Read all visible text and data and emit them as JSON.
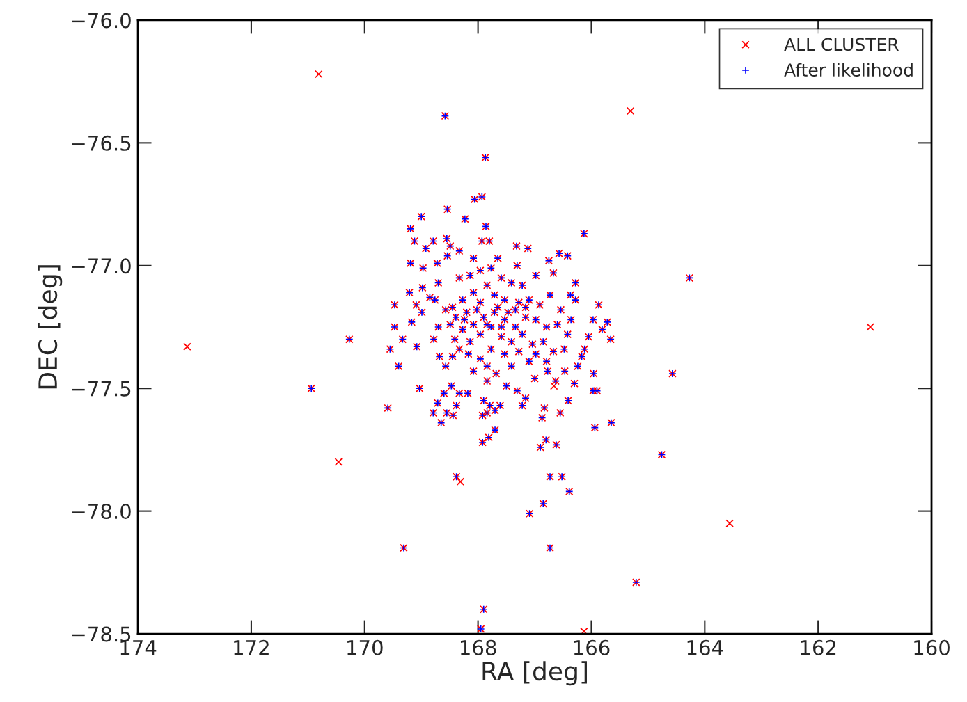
{
  "chart_data": {
    "type": "scatter",
    "xlabel": "RA [deg]",
    "ylabel": "DEC [deg]",
    "xlim": [
      174,
      160
    ],
    "xticks": [
      174,
      172,
      170,
      168,
      166,
      164,
      162,
      160
    ],
    "ylim": [
      -78.5,
      -76.0
    ],
    "yticks": [
      {
        "value": -78.5,
        "label": "−78.5"
      },
      {
        "value": -78.0,
        "label": "−78.0"
      },
      {
        "value": -77.5,
        "label": "−77.5"
      },
      {
        "value": -77.0,
        "label": "−77.0"
      },
      {
        "value": -76.5,
        "label": "−76.5"
      },
      {
        "value": -76.0,
        "label": "−76.0"
      }
    ],
    "grid": false,
    "legend": "top right",
    "series": [
      {
        "name": "ALL CLUSTER",
        "color": "#ff0000",
        "marker": "cross",
        "x": [
          168.58,
          167.87,
          170.27,
          170.94,
          169.59,
          169.31,
          167.9,
          167.95,
          166.13,
          164.27,
          164.57,
          164.76,
          165.21,
          166.73,
          167.09,
          166.85,
          166.39,
          166.73,
          166.52,
          166.8,
          166.9,
          166.62,
          167.92,
          167.81,
          167.7,
          168.38,
          168.06,
          167.93,
          168.54,
          168.23,
          167.86,
          169.0,
          169.19,
          169.12,
          168.79,
          168.55,
          168.92,
          168.49,
          167.93,
          167.8,
          167.32,
          167.12,
          166.57,
          166.42,
          169.19,
          168.97,
          168.72,
          168.54,
          168.33,
          168.08,
          167.65,
          167.31,
          166.75,
          168.98,
          169.21,
          168.85,
          168.7,
          166.98,
          166.67,
          166.28,
          166.37,
          166.28,
          165.87,
          165.97,
          165.72,
          165.81,
          165.66,
          166.05,
          169.47,
          169.47,
          169.17,
          169.09,
          168.99,
          169.33,
          169.55,
          169.4,
          169.08,
          168.78,
          168.68,
          169.03,
          168.79,
          168.47,
          168.6,
          168.33,
          168.18,
          167.9,
          167.61,
          167.22,
          167.16,
          166.83,
          166.55,
          166.41,
          165.96,
          166.3,
          166.63,
          166.77,
          166.24,
          166.12,
          165.9,
          168.08,
          167.84,
          167.5,
          167.31,
          167.68,
          168.57,
          168.45,
          168.17,
          168.41,
          168.49,
          168.24,
          168.65,
          168.71,
          168.55,
          168.44,
          168.38,
          167.79,
          167.7,
          167.92,
          167.84,
          165.94,
          165.65,
          165.97,
          166.87,
          167.0,
          166.47,
          166.17,
          168.33,
          168.14,
          167.96,
          167.77,
          167.59,
          167.41,
          167.22,
          167.84,
          168.08,
          168.27,
          167.96,
          167.71,
          167.53,
          167.28,
          167.1,
          166.91,
          166.73,
          166.54,
          166.6,
          166.79,
          166.98,
          167.16,
          167.34,
          167.53,
          167.71,
          167.9,
          168.08,
          168.27,
          167.96,
          167.77,
          167.59,
          167.41,
          167.22,
          167.04,
          166.85,
          166.67,
          166.48,
          167.28,
          167.53,
          167.77,
          167.96,
          167.1,
          166.98,
          167.65,
          167.47,
          167.84,
          168.02,
          167.16,
          167.34,
          167.59,
          168.45,
          168.39,
          168.2,
          168.57,
          168.7,
          168.76,
          166.42,
          166.36,
          168.33,
          168.14,
          167.84,
          167.41,
          166.79,
          170.81,
          165.31,
          173.13,
          170.46,
          161.08,
          163.56,
          168.31,
          166.66,
          166.13
        ],
        "values": [
          -76.39,
          -76.56,
          -77.3,
          -77.5,
          -77.58,
          -78.15,
          -78.4,
          -78.48,
          -76.87,
          -77.05,
          -77.44,
          -77.77,
          -78.29,
          -78.15,
          -78.01,
          -77.97,
          -77.92,
          -77.86,
          -77.86,
          -77.71,
          -77.74,
          -77.73,
          -77.72,
          -77.7,
          -77.67,
          -77.86,
          -76.73,
          -76.72,
          -76.77,
          -76.81,
          -76.84,
          -76.8,
          -76.85,
          -76.9,
          -76.9,
          -76.89,
          -76.93,
          -76.92,
          -76.9,
          -76.9,
          -76.92,
          -76.93,
          -76.95,
          -76.96,
          -76.99,
          -77.01,
          -76.99,
          -76.96,
          -76.94,
          -76.97,
          -76.97,
          -77.0,
          -76.98,
          -77.09,
          -77.11,
          -77.13,
          -77.07,
          -77.04,
          -77.03,
          -77.07,
          -77.12,
          -77.14,
          -77.16,
          -77.22,
          -77.23,
          -77.26,
          -77.3,
          -77.29,
          -77.16,
          -77.25,
          -77.23,
          -77.16,
          -77.19,
          -77.3,
          -77.34,
          -77.41,
          -77.33,
          -77.3,
          -77.37,
          -77.5,
          -77.6,
          -77.49,
          -77.52,
          -77.52,
          -77.52,
          -77.55,
          -77.57,
          -77.57,
          -77.54,
          -77.58,
          -77.6,
          -77.55,
          -77.44,
          -77.48,
          -77.47,
          -77.43,
          -77.41,
          -77.34,
          -77.51,
          -77.43,
          -77.47,
          -77.49,
          -77.51,
          -77.44,
          -77.41,
          -77.37,
          -77.36,
          -77.3,
          -77.24,
          -77.22,
          -77.64,
          -77.56,
          -77.6,
          -77.61,
          -77.57,
          -77.57,
          -77.59,
          -77.61,
          -77.6,
          -77.66,
          -77.64,
          -77.51,
          -77.62,
          -77.46,
          -77.43,
          -77.37,
          -77.05,
          -77.04,
          -77.02,
          -77.01,
          -77.05,
          -77.07,
          -77.08,
          -77.08,
          -77.11,
          -77.14,
          -77.15,
          -77.12,
          -77.14,
          -77.15,
          -77.14,
          -77.16,
          -77.12,
          -77.18,
          -77.24,
          -77.25,
          -77.22,
          -77.21,
          -77.25,
          -77.22,
          -77.19,
          -77.21,
          -77.24,
          -77.26,
          -77.28,
          -77.25,
          -77.29,
          -77.31,
          -77.28,
          -77.32,
          -77.31,
          -77.35,
          -77.34,
          -77.35,
          -77.36,
          -77.34,
          -77.38,
          -77.39,
          -77.36,
          -77.17,
          -77.19,
          -77.24,
          -77.18,
          -77.17,
          -77.18,
          -77.25,
          -77.17,
          -77.21,
          -77.19,
          -77.18,
          -77.25,
          -77.14,
          -77.28,
          -77.22,
          -77.34,
          -77.31,
          -77.41,
          -77.41,
          -77.39,
          -76.22,
          -76.37,
          -77.33,
          -77.8,
          -77.25,
          -78.05,
          -77.88,
          -77.49,
          -78.49
        ]
      },
      {
        "name": "After likelihood",
        "color": "#0000ff",
        "marker": "plus",
        "x": [
          168.58,
          167.87,
          170.27,
          170.94,
          169.59,
          169.31,
          167.9,
          167.95,
          166.13,
          164.27,
          164.57,
          164.76,
          165.21,
          166.73,
          167.09,
          166.85,
          166.39,
          166.73,
          166.52,
          166.8,
          166.9,
          166.62,
          167.92,
          167.81,
          167.7,
          168.38,
          168.06,
          167.93,
          168.54,
          168.23,
          167.86,
          169.0,
          169.19,
          169.12,
          168.79,
          168.55,
          168.92,
          168.49,
          167.93,
          167.8,
          167.32,
          167.12,
          166.57,
          166.42,
          169.19,
          168.97,
          168.72,
          168.54,
          168.33,
          168.08,
          167.65,
          167.31,
          166.75,
          168.98,
          169.21,
          168.85,
          168.7,
          166.98,
          166.67,
          166.28,
          166.37,
          166.28,
          165.87,
          165.97,
          165.72,
          165.81,
          165.66,
          166.05,
          169.47,
          169.47,
          169.17,
          169.09,
          168.99,
          169.33,
          169.55,
          169.4,
          169.08,
          168.78,
          168.68,
          169.03,
          168.79,
          168.47,
          168.6,
          168.33,
          168.18,
          167.9,
          167.61,
          167.22,
          167.16,
          166.83,
          166.55,
          166.41,
          165.96,
          166.3,
          166.63,
          166.77,
          166.24,
          166.12,
          165.9,
          168.08,
          167.84,
          167.5,
          167.31,
          167.68,
          168.57,
          168.45,
          168.17,
          168.41,
          168.49,
          168.24,
          168.65,
          168.71,
          168.55,
          168.44,
          168.38,
          167.79,
          167.7,
          167.92,
          167.84,
          165.94,
          165.65,
          165.97,
          166.87,
          167.0,
          166.47,
          166.17,
          168.33,
          168.14,
          167.96,
          167.77,
          167.59,
          167.41,
          167.22,
          167.84,
          168.08,
          168.27,
          167.96,
          167.71,
          167.53,
          167.28,
          167.1,
          166.91,
          166.73,
          166.54,
          166.6,
          166.79,
          166.98,
          167.16,
          167.34,
          167.53,
          167.71,
          167.9,
          168.08,
          168.27,
          167.96,
          167.77,
          167.59,
          167.41,
          167.22,
          167.04,
          166.85,
          166.67,
          166.48,
          167.28,
          167.53,
          167.77,
          167.96,
          167.1,
          166.98,
          167.65,
          167.47,
          167.84,
          168.02,
          167.16,
          167.34,
          167.59,
          168.45,
          168.39,
          168.2,
          168.57,
          168.7,
          168.76,
          166.42,
          166.36,
          168.33,
          168.14,
          167.84,
          167.41,
          166.79
        ],
        "values": [
          -76.39,
          -76.56,
          -77.3,
          -77.5,
          -77.58,
          -78.15,
          -78.4,
          -78.48,
          -76.87,
          -77.05,
          -77.44,
          -77.77,
          -78.29,
          -78.15,
          -78.01,
          -77.97,
          -77.92,
          -77.86,
          -77.86,
          -77.71,
          -77.74,
          -77.73,
          -77.72,
          -77.7,
          -77.67,
          -77.86,
          -76.73,
          -76.72,
          -76.77,
          -76.81,
          -76.84,
          -76.8,
          -76.85,
          -76.9,
          -76.9,
          -76.89,
          -76.93,
          -76.92,
          -76.9,
          -76.9,
          -76.92,
          -76.93,
          -76.95,
          -76.96,
          -76.99,
          -77.01,
          -76.99,
          -76.96,
          -76.94,
          -76.97,
          -76.97,
          -77.0,
          -76.98,
          -77.09,
          -77.11,
          -77.13,
          -77.07,
          -77.04,
          -77.03,
          -77.07,
          -77.12,
          -77.14,
          -77.16,
          -77.22,
          -77.23,
          -77.26,
          -77.3,
          -77.29,
          -77.16,
          -77.25,
          -77.23,
          -77.16,
          -77.19,
          -77.3,
          -77.34,
          -77.41,
          -77.33,
          -77.3,
          -77.37,
          -77.5,
          -77.6,
          -77.49,
          -77.52,
          -77.52,
          -77.52,
          -77.55,
          -77.57,
          -77.57,
          -77.54,
          -77.58,
          -77.6,
          -77.55,
          -77.44,
          -77.48,
          -77.47,
          -77.43,
          -77.41,
          -77.34,
          -77.51,
          -77.43,
          -77.47,
          -77.49,
          -77.51,
          -77.44,
          -77.41,
          -77.37,
          -77.36,
          -77.3,
          -77.24,
          -77.22,
          -77.64,
          -77.56,
          -77.6,
          -77.61,
          -77.57,
          -77.57,
          -77.59,
          -77.61,
          -77.6,
          -77.66,
          -77.64,
          -77.51,
          -77.62,
          -77.46,
          -77.43,
          -77.37,
          -77.05,
          -77.04,
          -77.02,
          -77.01,
          -77.05,
          -77.07,
          -77.08,
          -77.08,
          -77.11,
          -77.14,
          -77.15,
          -77.12,
          -77.14,
          -77.15,
          -77.14,
          -77.16,
          -77.12,
          -77.18,
          -77.24,
          -77.25,
          -77.22,
          -77.21,
          -77.25,
          -77.22,
          -77.19,
          -77.21,
          -77.24,
          -77.26,
          -77.28,
          -77.25,
          -77.29,
          -77.31,
          -77.28,
          -77.32,
          -77.31,
          -77.35,
          -77.34,
          -77.35,
          -77.36,
          -77.34,
          -77.38,
          -77.39,
          -77.36,
          -77.17,
          -77.19,
          -77.24,
          -77.18,
          -77.17,
          -77.18,
          -77.25,
          -77.17,
          -77.21,
          -77.19,
          -77.18,
          -77.25,
          -77.14,
          -77.28,
          -77.22,
          -77.34,
          -77.31,
          -77.41,
          -77.41,
          -77.39
        ]
      }
    ]
  }
}
